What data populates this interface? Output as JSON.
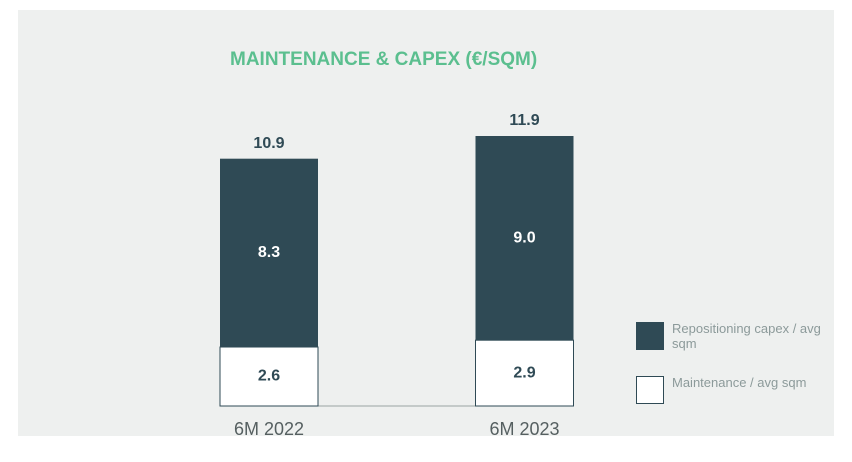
{
  "chart_data": {
    "type": "stacked-bar",
    "title": "MAINTENANCE & CAPEX (€/SQM)",
    "categories": [
      "6M 2022",
      "6M 2023"
    ],
    "series": [
      {
        "name": "Maintenance / avg sqm",
        "color": "#ffffff",
        "values": [
          2.6,
          2.9
        ]
      },
      {
        "name": "Repositioning capex / avg sqm",
        "color": "#2f4a55",
        "values": [
          8.3,
          9.0
        ],
        "value_labels": [
          "8.3",
          "9.0"
        ]
      }
    ],
    "totals": [
      10.9,
      11.9
    ]
  }
}
